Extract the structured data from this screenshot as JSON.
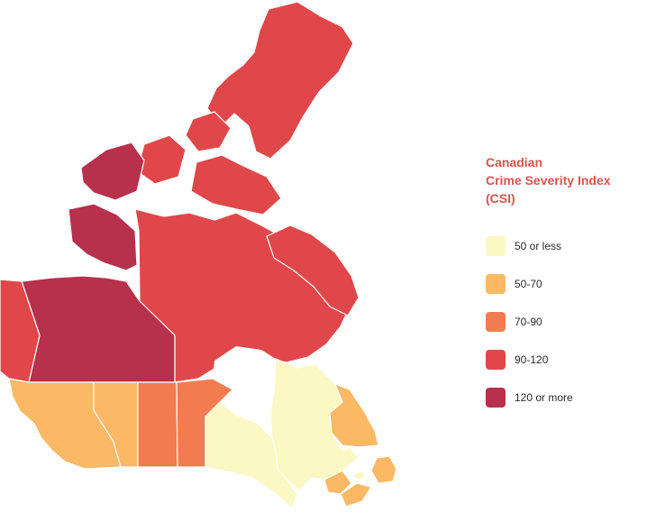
{
  "legend": {
    "title": "Canadian\nCrime Severity Index\n(CSI)",
    "items": [
      {
        "label": "50 or less",
        "color": "#fbf8c4"
      },
      {
        "label": "50-70",
        "color": "#fbb865"
      },
      {
        "label": "70-90",
        "color": "#f37b50"
      },
      {
        "label": "90-120",
        "color": "#e0474a"
      },
      {
        "label": "120 or more",
        "color": "#b7304c"
      }
    ]
  },
  "regions": [
    {
      "name": "Nunavut",
      "class": "90-120"
    },
    {
      "name": "Northwest Territories",
      "class": "120 or more"
    },
    {
      "name": "Yukon",
      "class": "90-120"
    },
    {
      "name": "British Columbia",
      "class": "50-70"
    },
    {
      "name": "Alberta",
      "class": "50-70"
    },
    {
      "name": "Saskatchewan",
      "class": "70-90"
    },
    {
      "name": "Manitoba",
      "class": "70-90"
    },
    {
      "name": "Ontario",
      "class": "50 or less"
    },
    {
      "name": "Quebec",
      "class": "50 or less"
    },
    {
      "name": "New Brunswick",
      "class": "50-70"
    },
    {
      "name": "Nova Scotia",
      "class": "50-70"
    },
    {
      "name": "Prince Edward Island",
      "class": "50 or less"
    },
    {
      "name": "Newfoundland and Labrador",
      "class": "50-70"
    }
  ]
}
